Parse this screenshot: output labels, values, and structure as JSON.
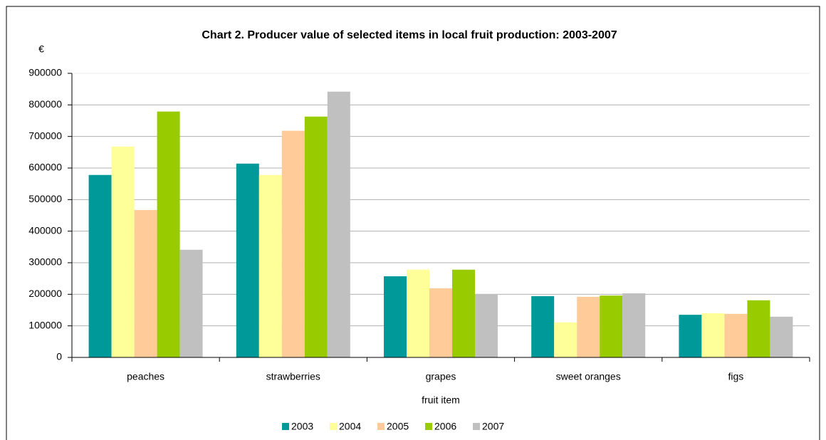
{
  "chart_data": {
    "type": "bar",
    "title": "Chart 2.  Producer value of selected items in local fruit production: 2003-2007",
    "y_label": "€",
    "x_label": "fruit item",
    "categories": [
      "peaches",
      "strawberries",
      "grapes",
      "sweet oranges",
      "figs"
    ],
    "series": [
      {
        "name": "2003",
        "color": "#009999",
        "values": [
          578000,
          614000,
          257000,
          194000,
          135000
        ]
      },
      {
        "name": "2004",
        "color": "#ffff99",
        "values": [
          668000,
          578000,
          278000,
          111000,
          140000
        ]
      },
      {
        "name": "2005",
        "color": "#ffcc99",
        "values": [
          467000,
          718000,
          219000,
          192000,
          138000
        ]
      },
      {
        "name": "2006",
        "color": "#99cc00",
        "values": [
          779000,
          763000,
          278000,
          196000,
          181000
        ]
      },
      {
        "name": "2007",
        "color": "#c0c0c0",
        "values": [
          341000,
          842000,
          201000,
          203000,
          129000
        ]
      }
    ],
    "ylim": [
      0,
      900000
    ],
    "yticks": [
      0,
      100000,
      200000,
      300000,
      400000,
      500000,
      600000,
      700000,
      800000,
      900000
    ],
    "grid": true,
    "legend": "bottom"
  }
}
